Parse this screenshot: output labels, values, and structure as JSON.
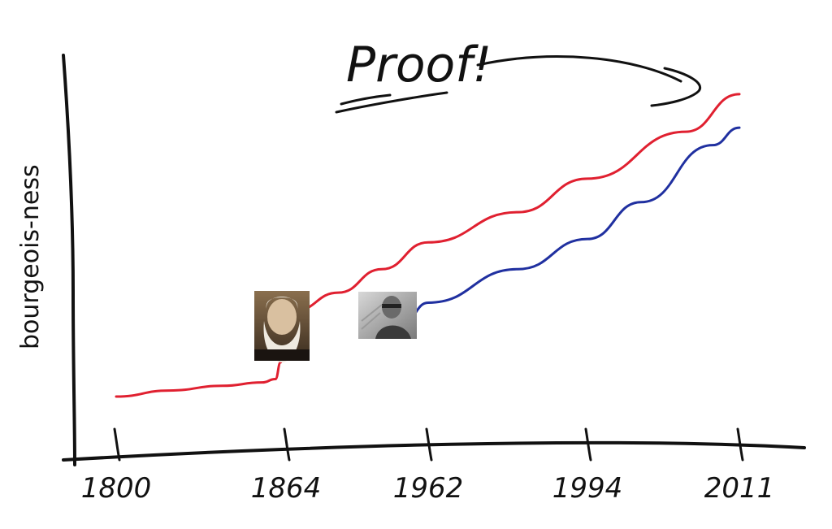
{
  "chart_data": {
    "type": "line",
    "title": "Proof!",
    "ylabel": "bourgeois-ness",
    "xlabel": "",
    "x_ticks": [
      "1800",
      "1864",
      "1962",
      "1994",
      "2011"
    ],
    "series": [
      {
        "color": "#e02030",
        "points": [
          [
            1800,
            0.5
          ],
          [
            1820,
            1.4
          ],
          [
            1840,
            2.1
          ],
          [
            1855,
            2.6
          ],
          [
            1860,
            3.1
          ],
          [
            1862,
            5.6
          ],
          [
            1864,
            12.8
          ],
          [
            1870,
            13.3
          ],
          [
            1900,
            16.0
          ],
          [
            1930,
            19.5
          ],
          [
            1962,
            23.5
          ],
          [
            1980,
            28.0
          ],
          [
            1994,
            33.0
          ],
          [
            2005,
            40.0
          ],
          [
            2011,
            45.6
          ]
        ]
      },
      {
        "color": "#2030a0",
        "points": [
          [
            1930,
            10.1
          ],
          [
            1945,
            11.6
          ],
          [
            1962,
            14.5
          ],
          [
            1980,
            19.5
          ],
          [
            1994,
            24.0
          ],
          [
            2000,
            29.5
          ],
          [
            2008,
            38.0
          ],
          [
            2011,
            40.6
          ]
        ]
      }
    ],
    "grid": false,
    "legend": "none"
  },
  "photos": [
    {
      "name": "bearded-man-portrait"
    },
    {
      "name": "man-with-glasses-portrait"
    }
  ],
  "colors": {
    "red_series": "#e02030",
    "blue_series": "#2030a0",
    "ink": "#111111"
  }
}
